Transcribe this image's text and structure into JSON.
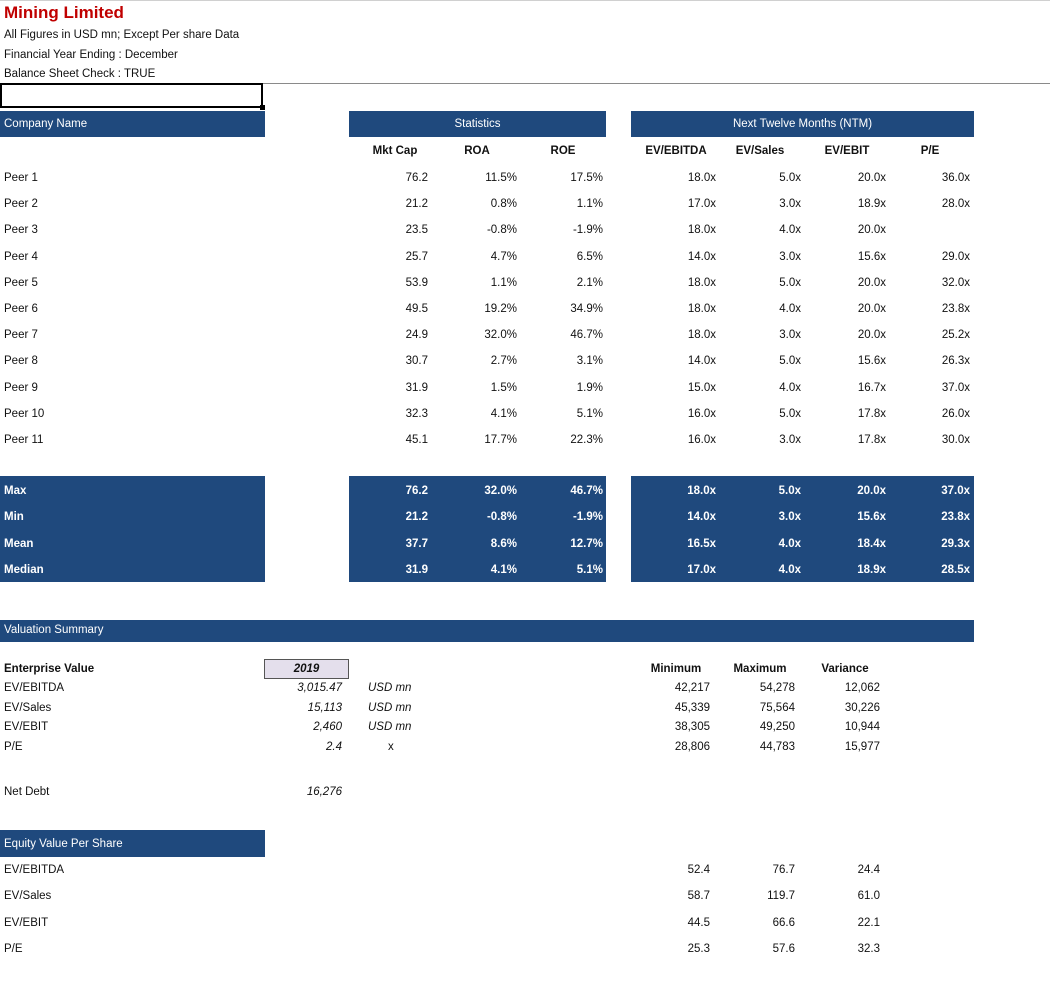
{
  "header": {
    "title": "Mining Limited",
    "line1": "All Figures in USD mn; Except Per share Data",
    "line2": "Financial Year Ending : December",
    "line3": "Balance Sheet Check : TRUE"
  },
  "table": {
    "company_header": "Company Name",
    "statistics_header": "Statistics",
    "ntm_header": "Next Twelve Months (NTM)",
    "columns": [
      "Mkt Cap",
      "ROA",
      "ROE",
      "EV/EBITDA",
      "EV/Sales",
      "EV/EBIT",
      "P/E"
    ],
    "rows": [
      [
        "Peer 1",
        "76.2",
        "11.5%",
        "17.5%",
        "18.0x",
        "5.0x",
        "20.0x",
        "36.0x"
      ],
      [
        "Peer 2",
        "21.2",
        "0.8%",
        "1.1%",
        "17.0x",
        "3.0x",
        "18.9x",
        "28.0x"
      ],
      [
        "Peer 3",
        "23.5",
        "-0.8%",
        "-1.9%",
        "18.0x",
        "4.0x",
        "20.0x",
        ""
      ],
      [
        "Peer 4",
        "25.7",
        "4.7%",
        "6.5%",
        "14.0x",
        "3.0x",
        "15.6x",
        "29.0x"
      ],
      [
        "Peer 5",
        "53.9",
        "1.1%",
        "2.1%",
        "18.0x",
        "5.0x",
        "20.0x",
        "32.0x"
      ],
      [
        "Peer 6",
        "49.5",
        "19.2%",
        "34.9%",
        "18.0x",
        "4.0x",
        "20.0x",
        "23.8x"
      ],
      [
        "Peer 7",
        "24.9",
        "32.0%",
        "46.7%",
        "18.0x",
        "3.0x",
        "20.0x",
        "25.2x"
      ],
      [
        "Peer 8",
        "30.7",
        "2.7%",
        "3.1%",
        "14.0x",
        "5.0x",
        "15.6x",
        "26.3x"
      ],
      [
        "Peer 9",
        "31.9",
        "1.5%",
        "1.9%",
        "15.0x",
        "4.0x",
        "16.7x",
        "37.0x"
      ],
      [
        "Peer 10",
        "32.3",
        "4.1%",
        "5.1%",
        "16.0x",
        "5.0x",
        "17.8x",
        "26.0x"
      ],
      [
        "Peer 11",
        "45.1",
        "17.7%",
        "22.3%",
        "16.0x",
        "3.0x",
        "17.8x",
        "30.0x"
      ]
    ],
    "summary": [
      [
        "Max",
        "76.2",
        "32.0%",
        "46.7%",
        "18.0x",
        "5.0x",
        "20.0x",
        "37.0x"
      ],
      [
        "Min",
        "21.2",
        "-0.8%",
        "-1.9%",
        "14.0x",
        "3.0x",
        "15.6x",
        "23.8x"
      ],
      [
        "Mean",
        "37.7",
        "8.6%",
        "12.7%",
        "16.5x",
        "4.0x",
        "18.4x",
        "29.3x"
      ],
      [
        "Median",
        "31.9",
        "4.1%",
        "5.1%",
        "17.0x",
        "4.0x",
        "18.9x",
        "28.5x"
      ]
    ]
  },
  "valuation": {
    "header": "Valuation Summary",
    "ev_label": "Enterprise Value",
    "year": "2019",
    "range_headers": [
      "Minimum",
      "Maximum",
      "Variance"
    ],
    "rows": [
      {
        "label": "EV/EBITDA",
        "value": "3,015.47",
        "unit": "USD mn",
        "min": "42,217",
        "max": "54,278",
        "var": "12,062"
      },
      {
        "label": "EV/Sales",
        "value": "15,113",
        "unit": "USD mn",
        "min": "45,339",
        "max": "75,564",
        "var": "30,226"
      },
      {
        "label": "EV/EBIT",
        "value": "2,460",
        "unit": "USD mn",
        "min": "38,305",
        "max": "49,250",
        "var": "10,944"
      },
      {
        "label": "P/E",
        "value": "2.4",
        "unit": "x",
        "min": "28,806",
        "max": "44,783",
        "var": "15,977"
      }
    ],
    "net_debt_label": "Net Debt",
    "net_debt_value": "16,276"
  },
  "equity": {
    "header": "Equity Value Per Share",
    "rows": [
      {
        "label": "EV/EBITDA",
        "min": "52.4",
        "max": "76.7",
        "var": "24.4"
      },
      {
        "label": "EV/Sales",
        "min": "58.7",
        "max": "119.7",
        "var": "61.0"
      },
      {
        "label": "EV/EBIT",
        "min": "44.5",
        "max": "66.6",
        "var": "22.1"
      },
      {
        "label": "P/E",
        "min": "25.3",
        "max": "57.6",
        "var": "32.3"
      }
    ]
  },
  "colors": {
    "band": "#1f497d",
    "title": "#c00000",
    "year_fill": "#e4dfec"
  }
}
